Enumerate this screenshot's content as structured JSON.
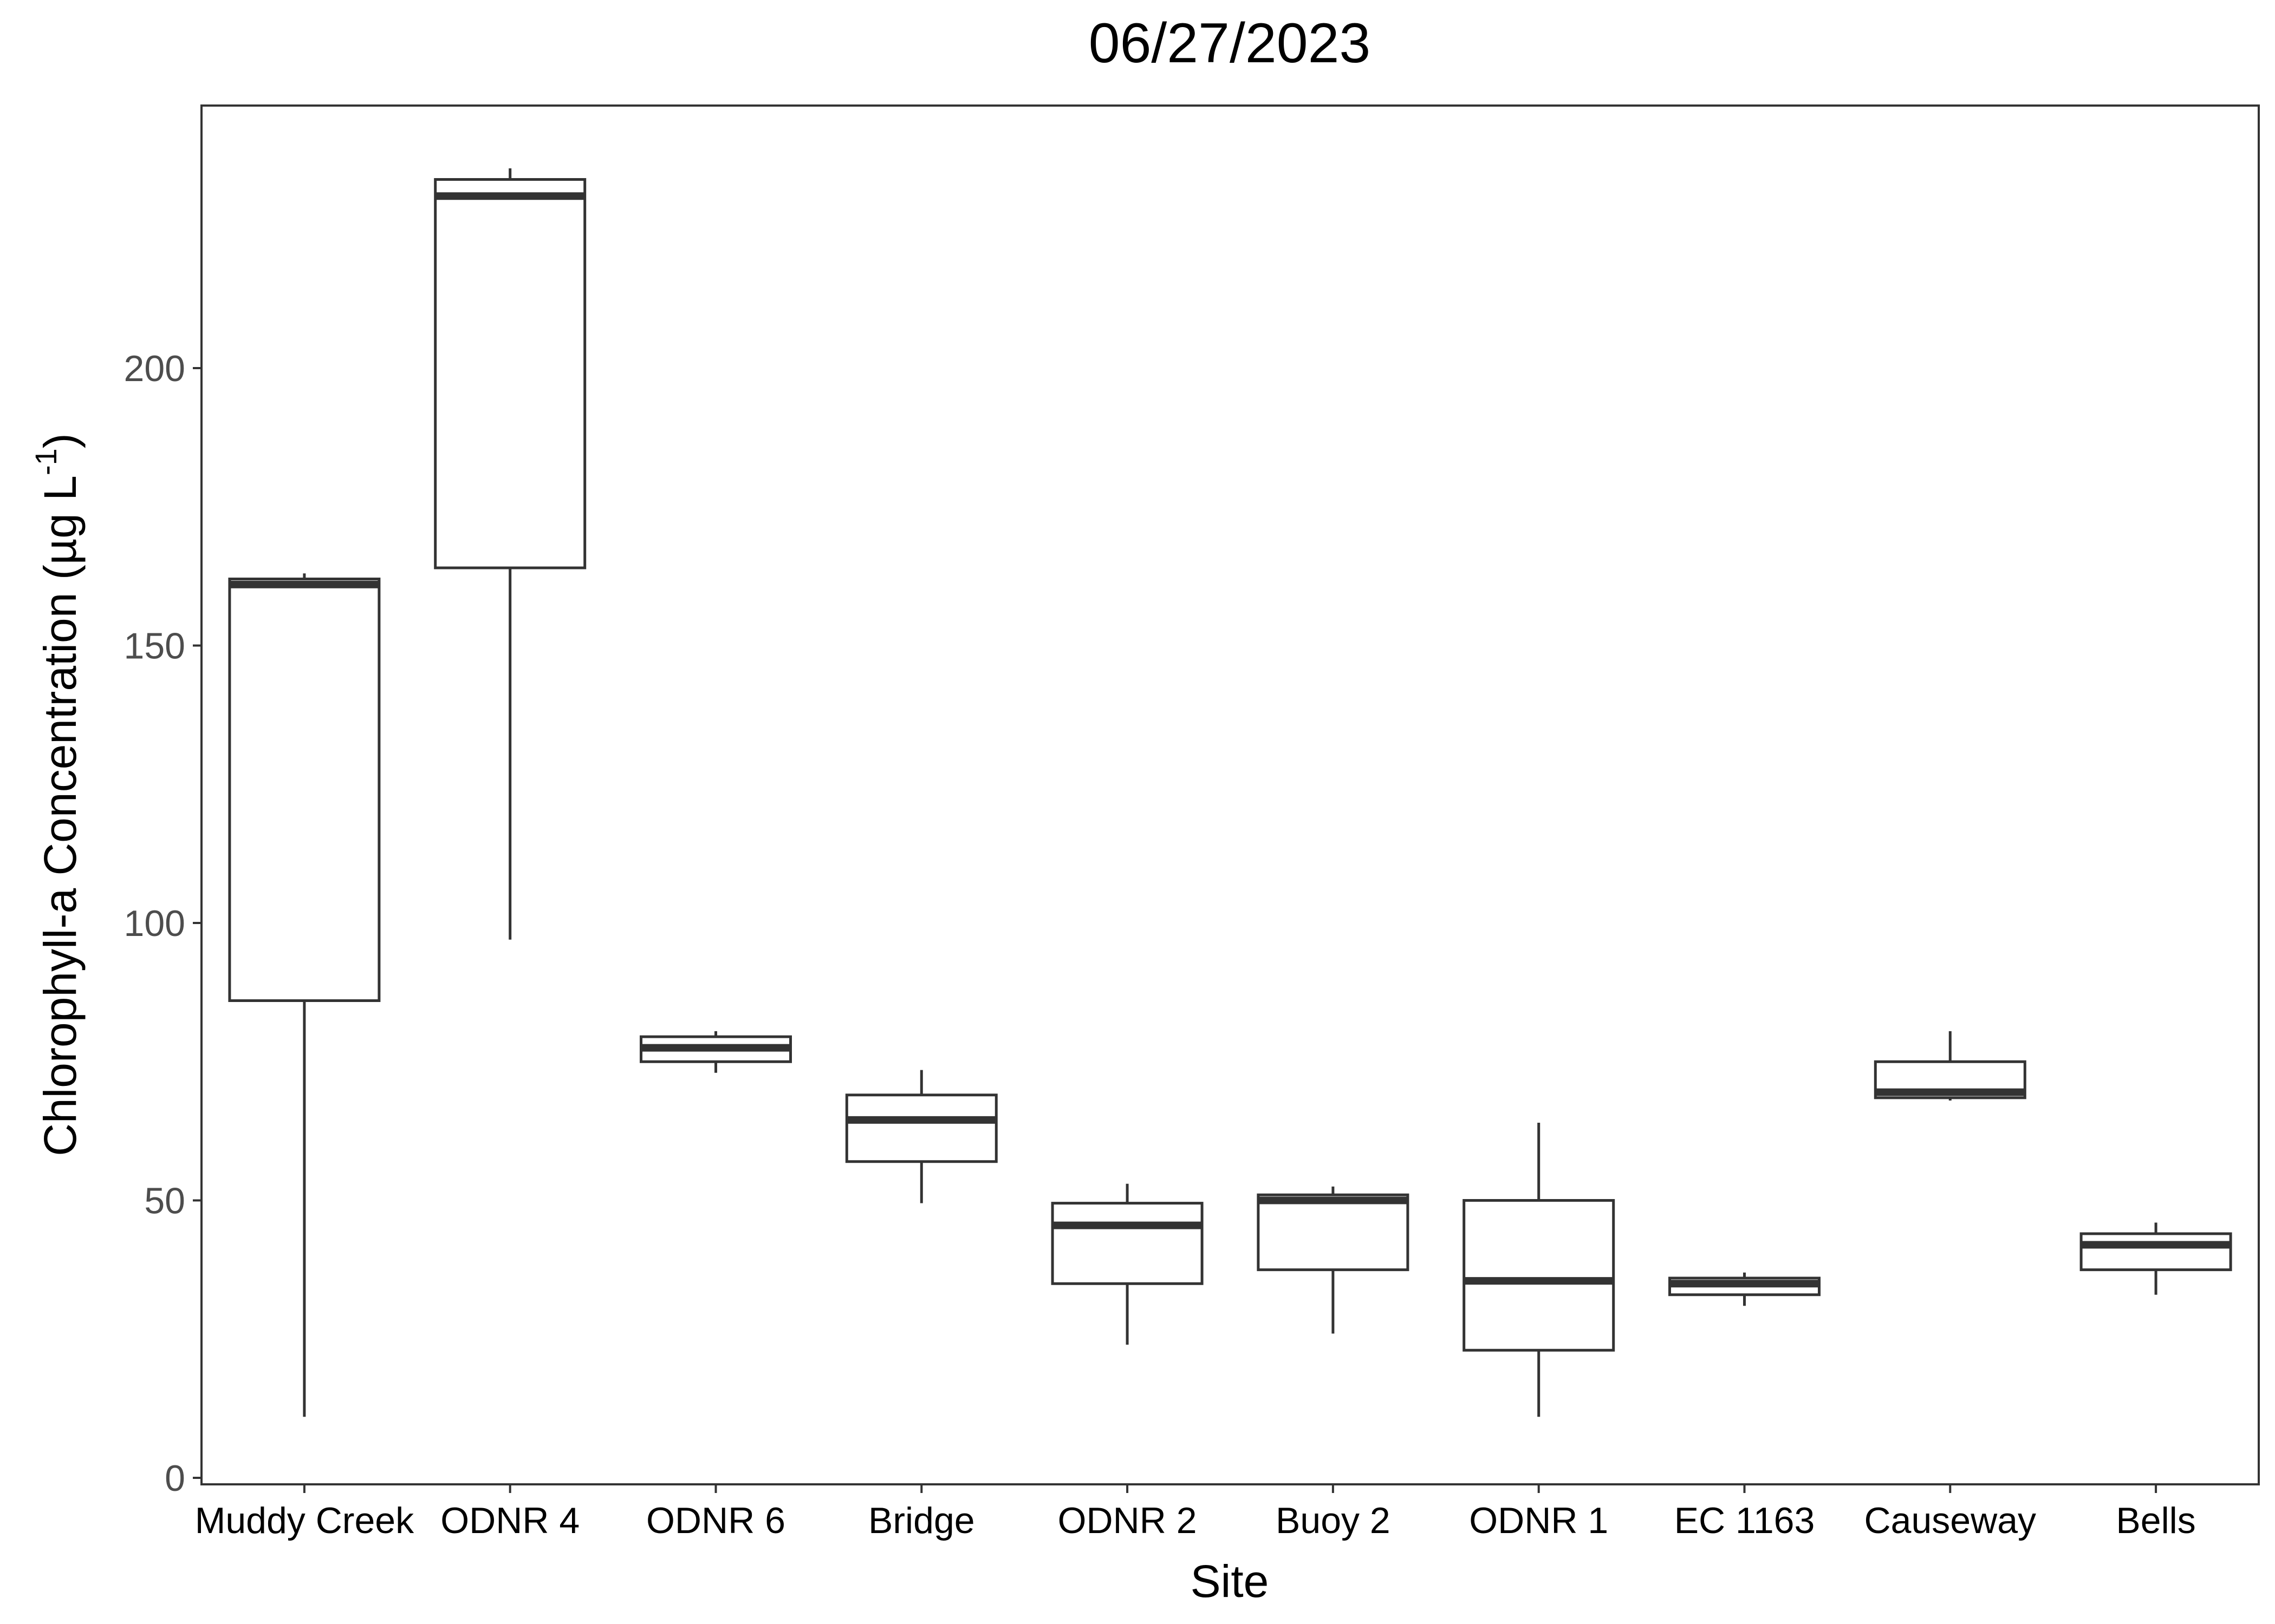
{
  "chart_data": {
    "type": "boxplot",
    "title": "06/27/2023",
    "xlabel": "Site",
    "ylabel": "Chlorophyll-a Concentration (µg L",
    "ylabel_superscript": "-1",
    "ylabel_close": ")",
    "ylim": [
      0,
      245
    ],
    "yticks": [
      0,
      50,
      100,
      150,
      200
    ],
    "grid": false,
    "legend": "none",
    "categories": [
      "Muddy Creek",
      "ODNR 4",
      "ODNR 6",
      "Bridge",
      "ODNR 2",
      "Buoy 2",
      "ODNR 1",
      "EC 1163",
      "Causeway",
      "Bells"
    ],
    "boxes": [
      {
        "site": "Muddy Creek",
        "min": 11,
        "q1": 86,
        "median": 161,
        "q3": 162,
        "max": 163
      },
      {
        "site": "ODNR 4",
        "min": 97,
        "q1": 164,
        "median": 231,
        "q3": 234,
        "max": 236
      },
      {
        "site": "ODNR 6",
        "min": 73,
        "q1": 75,
        "median": 77.5,
        "q3": 79.5,
        "max": 80.5
      },
      {
        "site": "Bridge",
        "min": 49.5,
        "q1": 57,
        "median": 64.5,
        "q3": 69,
        "max": 73.5
      },
      {
        "site": "ODNR 2",
        "min": 24,
        "q1": 35,
        "median": 45.5,
        "q3": 49.5,
        "max": 53
      },
      {
        "site": "Buoy 2",
        "min": 26,
        "q1": 37.5,
        "median": 50,
        "q3": 51,
        "max": 52.5
      },
      {
        "site": "ODNR 1",
        "min": 11,
        "q1": 23,
        "median": 35.5,
        "q3": 50,
        "max": 64
      },
      {
        "site": "EC 1163",
        "min": 31,
        "q1": 33,
        "median": 35,
        "q3": 36,
        "max": 37
      },
      {
        "site": "Causeway",
        "min": 68,
        "q1": 68.5,
        "median": 69.5,
        "q3": 75,
        "max": 80.5
      },
      {
        "site": "Bells",
        "min": 33,
        "q1": 37.5,
        "median": 42,
        "q3": 44,
        "max": 46
      }
    ]
  },
  "colors": {
    "box_stroke": "#333333",
    "box_fill": "#ffffff",
    "panel_border": "#333333",
    "tick_label": "#4d4d4d"
  }
}
